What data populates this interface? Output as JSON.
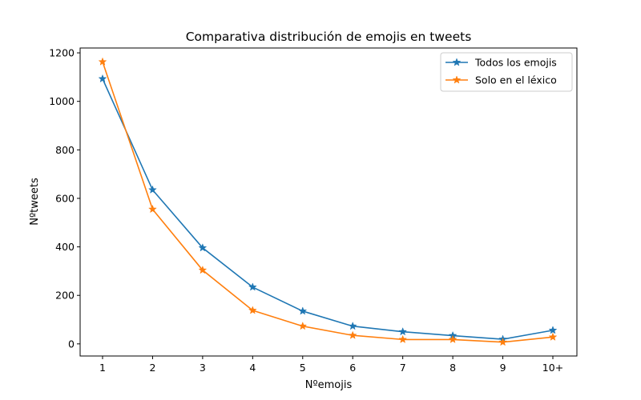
{
  "chart_data": {
    "type": "line",
    "title": "Comparativa distribución de emojis en tweets",
    "xlabel": "Nºemojis",
    "ylabel": "Nºtweets",
    "categories": [
      "1",
      "2",
      "3",
      "4",
      "5",
      "6",
      "7",
      "8",
      "9",
      "10+"
    ],
    "ylim": [
      -50,
      1220
    ],
    "yticks": [
      0,
      200,
      400,
      600,
      800,
      1000,
      1200
    ],
    "grid": false,
    "legend_position": "top-right",
    "series": [
      {
        "name": "Todos los emojis",
        "color": "#1f77b4",
        "marker": "star",
        "values": [
          1093,
          635,
          396,
          234,
          135,
          73,
          50,
          34,
          19,
          56
        ]
      },
      {
        "name": "Solo en el léxico",
        "color": "#ff7f0e",
        "marker": "star",
        "values": [
          1163,
          555,
          304,
          138,
          73,
          35,
          18,
          18,
          7,
          28
        ]
      }
    ]
  }
}
